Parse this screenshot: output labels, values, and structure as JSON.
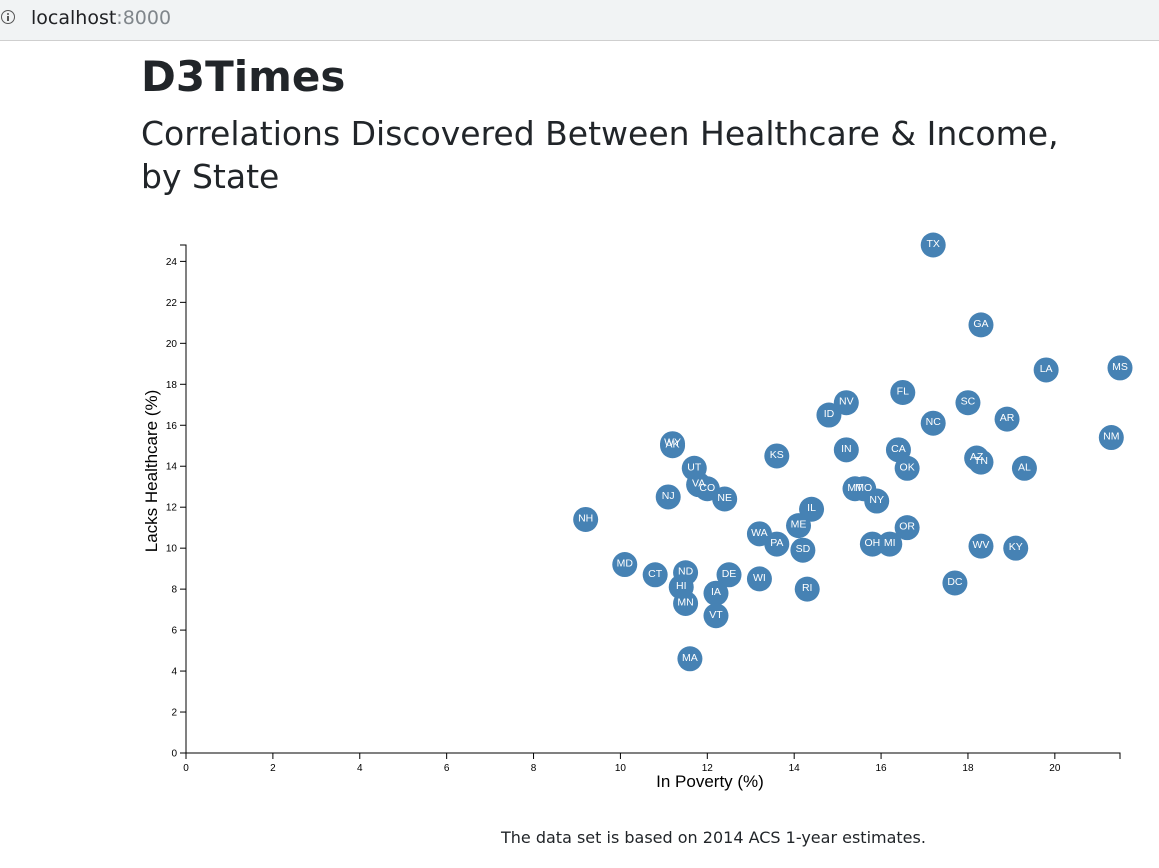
{
  "browser": {
    "url_host": "localhost",
    "url_port": ":8000",
    "info_icon": "info-icon"
  },
  "page": {
    "title": "D3Times",
    "subtitle": "Correlations Discovered Between Healthcare & Income, by State",
    "footer": "The data set is based on 2014 ACS 1-year estimates."
  },
  "chart_data": {
    "type": "scatter",
    "xlabel": "In Poverty (%)",
    "ylabel": "Lacks Healthcare (%)",
    "xlim": [
      0,
      21.5
    ],
    "ylim": [
      0,
      24.8
    ],
    "xticks": [
      0,
      2,
      4,
      6,
      8,
      10,
      12,
      14,
      16,
      18,
      20
    ],
    "yticks": [
      0,
      2,
      4,
      6,
      8,
      10,
      12,
      14,
      16,
      18,
      20,
      22,
      24
    ],
    "marker_color": "#4682b4",
    "label_color": "#ffffff",
    "grid": false,
    "points": [
      {
        "abbr": "TX",
        "x": 17.2,
        "y": 24.8
      },
      {
        "abbr": "GA",
        "x": 18.3,
        "y": 20.9
      },
      {
        "abbr": "LA",
        "x": 19.8,
        "y": 18.7
      },
      {
        "abbr": "MS",
        "x": 21.5,
        "y": 18.8
      },
      {
        "abbr": "FL",
        "x": 16.5,
        "y": 17.6
      },
      {
        "abbr": "SC",
        "x": 18.0,
        "y": 17.1
      },
      {
        "abbr": "NV",
        "x": 15.2,
        "y": 17.1
      },
      {
        "abbr": "ID",
        "x": 14.8,
        "y": 16.5
      },
      {
        "abbr": "AR",
        "x": 18.9,
        "y": 16.3
      },
      {
        "abbr": "NC",
        "x": 17.2,
        "y": 16.1
      },
      {
        "abbr": "NM",
        "x": 21.3,
        "y": 15.4
      },
      {
        "abbr": "WY",
        "x": 11.2,
        "y": 15.1
      },
      {
        "abbr": "AK",
        "x": 11.2,
        "y": 15.0
      },
      {
        "abbr": "IN",
        "x": 15.2,
        "y": 14.8
      },
      {
        "abbr": "CA",
        "x": 16.4,
        "y": 14.8
      },
      {
        "abbr": "KS",
        "x": 13.6,
        "y": 14.5
      },
      {
        "abbr": "AZ",
        "x": 18.2,
        "y": 14.4
      },
      {
        "abbr": "TN",
        "x": 18.3,
        "y": 14.2
      },
      {
        "abbr": "AL",
        "x": 19.3,
        "y": 13.9
      },
      {
        "abbr": "OK",
        "x": 16.6,
        "y": 13.9
      },
      {
        "abbr": "UT",
        "x": 11.7,
        "y": 13.9
      },
      {
        "abbr": "VA",
        "x": 11.8,
        "y": 13.1
      },
      {
        "abbr": "CO",
        "x": 12.0,
        "y": 12.9
      },
      {
        "abbr": "MT",
        "x": 15.4,
        "y": 12.9
      },
      {
        "abbr": "MO",
        "x": 15.6,
        "y": 12.9
      },
      {
        "abbr": "NJ",
        "x": 11.1,
        "y": 12.5
      },
      {
        "abbr": "NE",
        "x": 12.4,
        "y": 12.4
      },
      {
        "abbr": "NY",
        "x": 15.9,
        "y": 12.3
      },
      {
        "abbr": "IL",
        "x": 14.4,
        "y": 11.9
      },
      {
        "abbr": "NH",
        "x": 9.2,
        "y": 11.4
      },
      {
        "abbr": "ME",
        "x": 14.1,
        "y": 11.1
      },
      {
        "abbr": "OR",
        "x": 16.6,
        "y": 11.0
      },
      {
        "abbr": "WA",
        "x": 13.2,
        "y": 10.7
      },
      {
        "abbr": "PA",
        "x": 13.6,
        "y": 10.2
      },
      {
        "abbr": "OH",
        "x": 15.8,
        "y": 10.2
      },
      {
        "abbr": "MI",
        "x": 16.2,
        "y": 10.2
      },
      {
        "abbr": "WV",
        "x": 18.3,
        "y": 10.1
      },
      {
        "abbr": "KY",
        "x": 19.1,
        "y": 10.0
      },
      {
        "abbr": "SD",
        "x": 14.2,
        "y": 9.9
      },
      {
        "abbr": "MD",
        "x": 10.1,
        "y": 9.2
      },
      {
        "abbr": "ND",
        "x": 11.5,
        "y": 8.8
      },
      {
        "abbr": "CT",
        "x": 10.8,
        "y": 8.7
      },
      {
        "abbr": "DE",
        "x": 12.5,
        "y": 8.7
      },
      {
        "abbr": "WI",
        "x": 13.2,
        "y": 8.5
      },
      {
        "abbr": "DC",
        "x": 17.7,
        "y": 8.3
      },
      {
        "abbr": "HI",
        "x": 11.4,
        "y": 8.1
      },
      {
        "abbr": "RI",
        "x": 14.3,
        "y": 8.0
      },
      {
        "abbr": "IA",
        "x": 12.2,
        "y": 7.8
      },
      {
        "abbr": "MN",
        "x": 11.5,
        "y": 7.3
      },
      {
        "abbr": "VT",
        "x": 12.2,
        "y": 6.7
      },
      {
        "abbr": "MA",
        "x": 11.6,
        "y": 4.6
      }
    ]
  }
}
